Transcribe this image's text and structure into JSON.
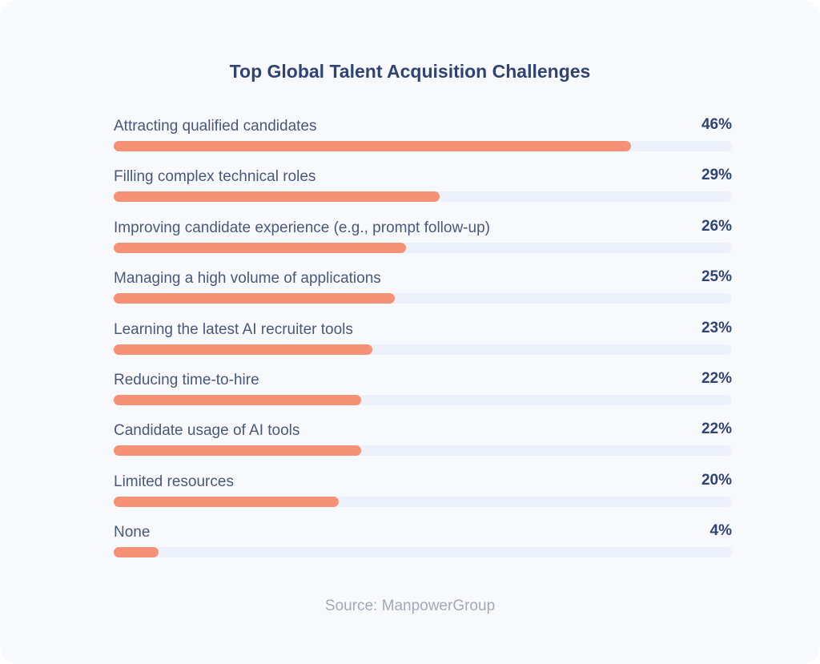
{
  "chart_data": {
    "type": "bar",
    "orientation": "horizontal",
    "title": "Top Global Talent Acquisition Challenges",
    "categories": [
      "Attracting qualified candidates",
      "Filling complex technical roles",
      "Improving candidate experience (e.g., prompt follow-up)",
      "Managing a high volume of applications",
      "Learning the latest AI recruiter tools",
      "Reducing time-to-hire",
      "Candidate usage of AI tools",
      "Limited resources",
      "None"
    ],
    "values": [
      46,
      29,
      26,
      25,
      23,
      22,
      22,
      20,
      4
    ],
    "value_labels": [
      "46%",
      "29%",
      "26%",
      "25%",
      "23%",
      "22%",
      "22%",
      "20%",
      "4%"
    ],
    "xlim": [
      0,
      55
    ],
    "unit": "%",
    "grid": false,
    "colors": {
      "bar": "#f59275",
      "track": "#edf1fb",
      "title": "#2f4374"
    }
  },
  "source": "Source: ManpowerGroup"
}
